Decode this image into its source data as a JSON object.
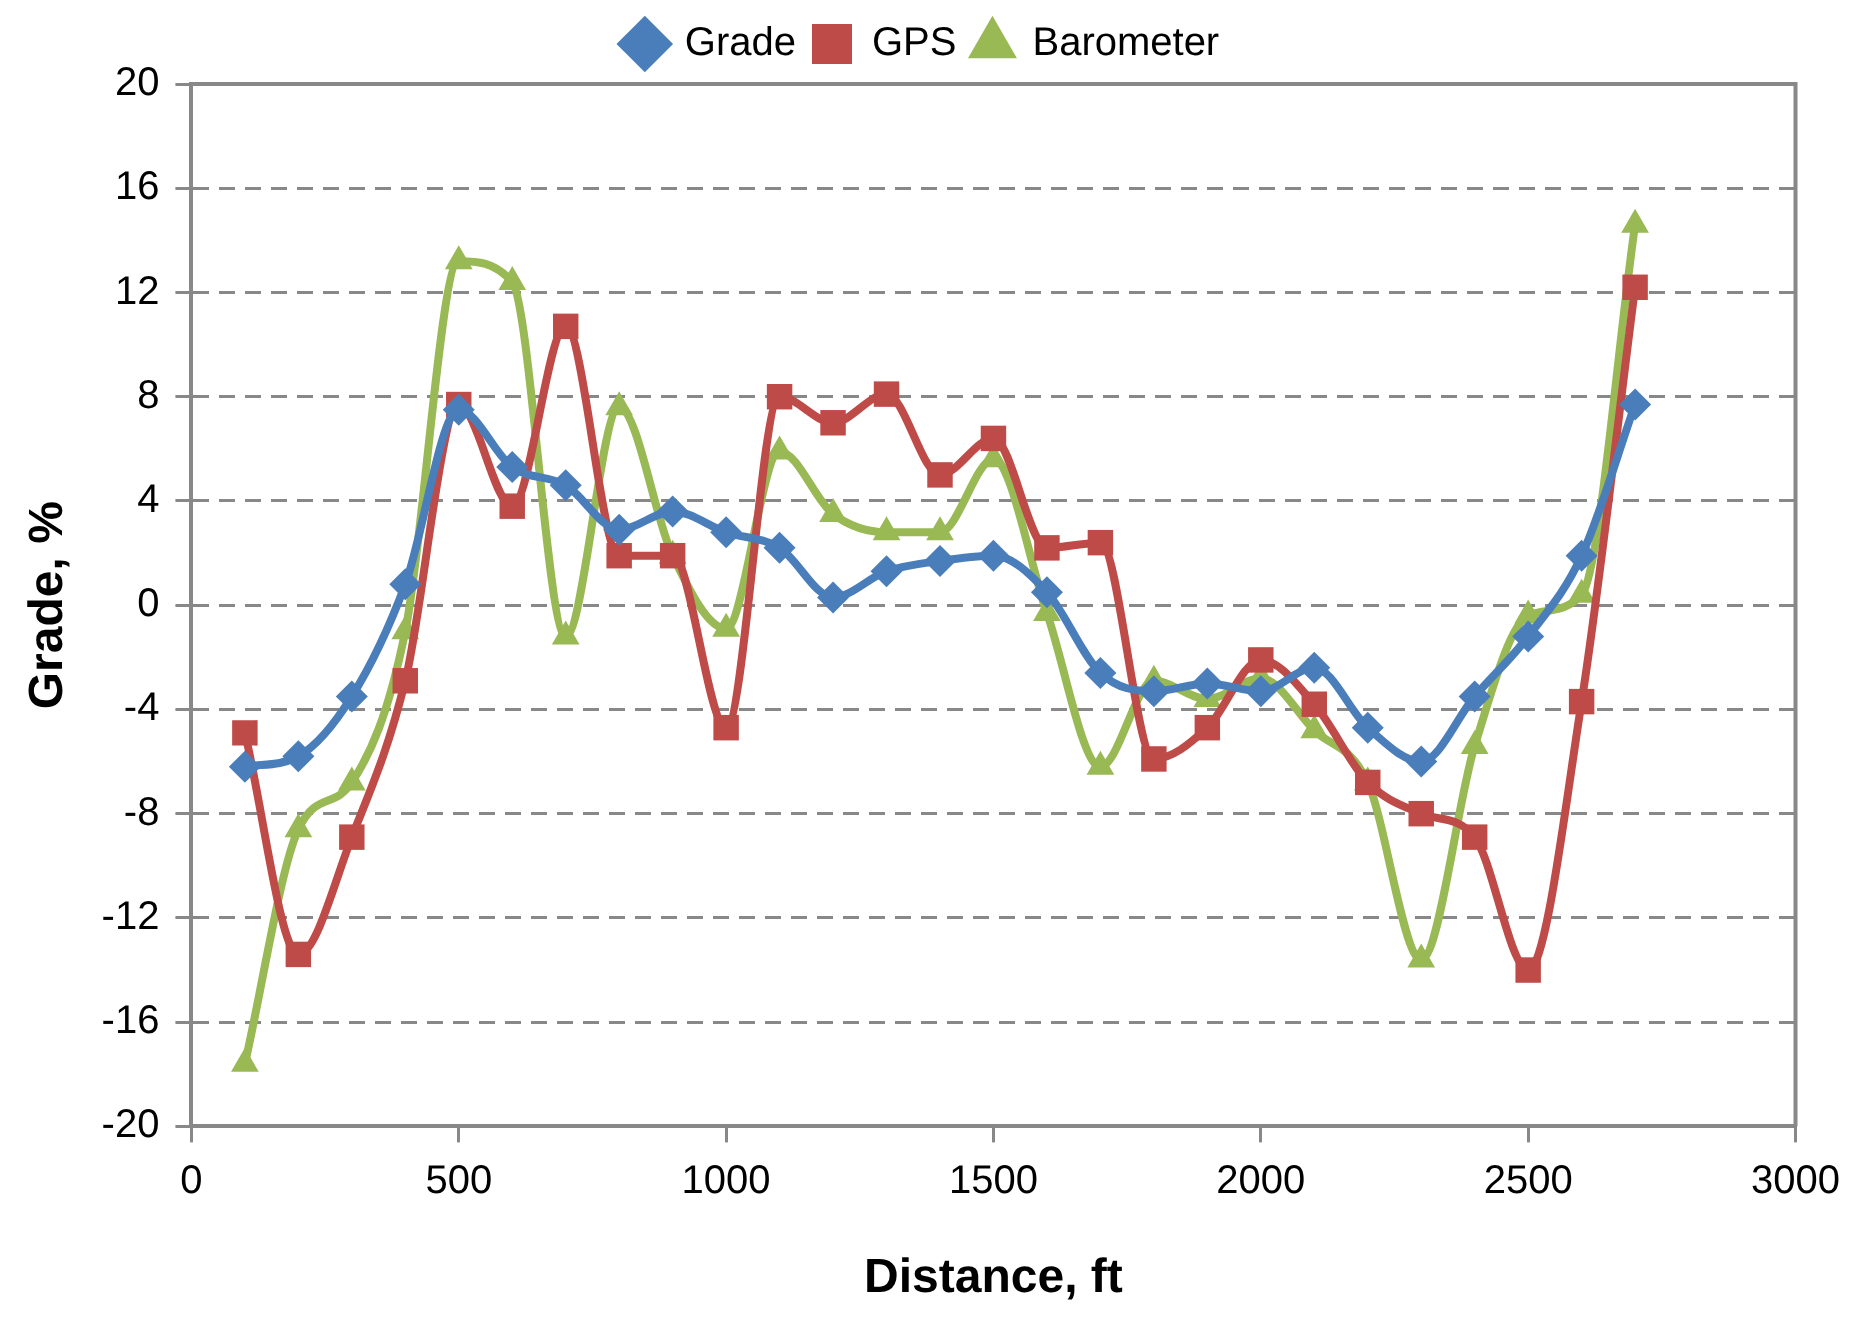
{
  "chart_data": {
    "type": "line",
    "xlabel": "Distance, ft",
    "ylabel": "Grade, %",
    "x": [
      100,
      200,
      300,
      400,
      500,
      600,
      700,
      800,
      900,
      1000,
      1100,
      1200,
      1300,
      1400,
      1500,
      1600,
      1700,
      1800,
      1900,
      2000,
      2100,
      2200,
      2300,
      2400,
      2500,
      2600,
      2700
    ],
    "series": [
      {
        "name": "Grade",
        "color": "#4a7ebb",
        "marker": "diamond",
        "values": [
          -6.2,
          -5.8,
          -3.5,
          0.8,
          7.5,
          5.3,
          4.6,
          2.9,
          3.6,
          2.8,
          2.2,
          0.3,
          1.3,
          1.7,
          1.9,
          0.5,
          -2.6,
          -3.3,
          -3.0,
          -3.3,
          -2.4,
          -4.7,
          -6.0,
          -3.5,
          -1.2,
          1.9,
          7.7
        ]
      },
      {
        "name": "GPS",
        "color": "#be4b48",
        "marker": "square",
        "values": [
          -4.9,
          -13.4,
          -8.9,
          -2.9,
          7.7,
          3.8,
          10.7,
          1.9,
          1.9,
          -4.7,
          8.0,
          7.0,
          8.1,
          5.0,
          6.4,
          2.2,
          2.4,
          -5.9,
          -4.7,
          -2.1,
          -3.8,
          -6.8,
          -8.0,
          -8.9,
          -14.0,
          -3.7,
          12.2
        ]
      },
      {
        "name": "Barometer",
        "color": "#98b954",
        "marker": "triangle",
        "values": [
          -17.6,
          -8.6,
          -6.8,
          -1.0,
          13.2,
          12.4,
          -1.2,
          7.6,
          1.9,
          -0.9,
          5.9,
          3.5,
          2.8,
          2.8,
          5.6,
          -0.3,
          -6.2,
          -2.9,
          -3.6,
          -2.8,
          -4.8,
          -6.8,
          -13.6,
          -5.4,
          -0.4,
          0.4,
          14.6
        ]
      }
    ],
    "xlim": [
      0,
      3000
    ],
    "xticks": [
      0,
      500,
      1000,
      1500,
      2000,
      2500,
      3000
    ],
    "ylim": [
      -20,
      20
    ],
    "yticks": [
      -20,
      -16,
      -12,
      -8,
      -4,
      0,
      4,
      8,
      12,
      16,
      20
    ],
    "grid": "y",
    "legend": "top"
  }
}
